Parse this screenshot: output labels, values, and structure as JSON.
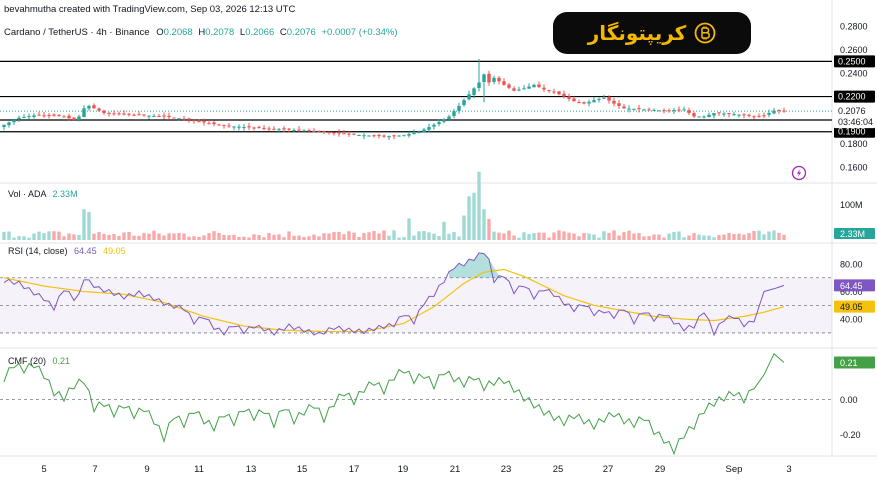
{
  "header": {
    "credit": "bevahmutha created with TradingView.com, Sep 03, 2026 12:13 UTC",
    "symbol": "Cardano / TetherUS · 4h · Binance",
    "ohlc": {
      "o_label": "O",
      "o": "0.2068",
      "h_label": "H",
      "h": "0.2078",
      "l_label": "L",
      "l": "0.2066",
      "c_label": "C",
      "c": "0.2076",
      "change": "+0.0007 (+0.34%)"
    }
  },
  "brand": {
    "name": "کریپتونگار",
    "icon": "bitcoin-logo-icon",
    "bg": "#0b0b0b",
    "fg": "#f5b800"
  },
  "colors": {
    "up": "#26a69a",
    "down": "#ef5350",
    "rsi": "#7e57c2",
    "rsi_ma": "#f4c20d",
    "cmf": "#43a047",
    "level": "#000000"
  },
  "chart_data": [
    {
      "type": "candlestick",
      "name": "Cardano / TetherUS · 4h · Binance",
      "ylim": [
        0.148,
        0.287
      ],
      "price_ticks": [
        "0.2800",
        "0.2600",
        "0.2400",
        "0.2200",
        "0.2000",
        "0.1800",
        "0.1600"
      ],
      "levels": [
        {
          "value": 0.25,
          "label": "0.2500"
        },
        {
          "value": 0.22,
          "label": "0.2200"
        },
        {
          "value": 0.19,
          "label": "0.1900"
        },
        {
          "value": 0.2,
          "label": "0.2000"
        }
      ],
      "last_price": {
        "value": 0.2076,
        "label": "0.2076",
        "countdown": "03:46:04"
      },
      "close_series_anchors": [
        [
          0,
          0.196
        ],
        [
          3,
          0.202
        ],
        [
          6,
          0.204
        ],
        [
          9,
          0.204
        ],
        [
          12,
          0.203
        ],
        [
          14,
          0.2
        ],
        [
          15,
          0.203
        ],
        [
          16,
          0.21
        ],
        [
          17,
          0.212
        ],
        [
          20,
          0.206
        ],
        [
          24,
          0.205
        ],
        [
          28,
          0.204
        ],
        [
          32,
          0.203
        ],
        [
          36,
          0.201
        ],
        [
          40,
          0.198
        ],
        [
          44,
          0.195
        ],
        [
          48,
          0.194
        ],
        [
          52,
          0.193
        ],
        [
          56,
          0.192
        ],
        [
          60,
          0.191
        ],
        [
          64,
          0.19
        ],
        [
          68,
          0.188
        ],
        [
          72,
          0.187
        ],
        [
          76,
          0.186
        ],
        [
          80,
          0.187
        ],
        [
          83,
          0.19
        ],
        [
          86,
          0.196
        ],
        [
          89,
          0.203
        ],
        [
          91,
          0.212
        ],
        [
          93,
          0.222
        ],
        [
          95,
          0.232
        ],
        [
          96,
          0.239
        ],
        [
          97,
          0.232
        ],
        [
          98,
          0.236
        ],
        [
          100,
          0.23
        ],
        [
          102,
          0.225
        ],
        [
          104,
          0.227
        ],
        [
          106,
          0.23
        ],
        [
          108,
          0.226
        ],
        [
          110,
          0.224
        ],
        [
          112,
          0.22
        ],
        [
          114,
          0.216
        ],
        [
          116,
          0.214
        ],
        [
          118,
          0.217
        ],
        [
          120,
          0.219
        ],
        [
          122,
          0.214
        ],
        [
          124,
          0.21
        ],
        [
          128,
          0.209
        ],
        [
          132,
          0.208
        ],
        [
          136,
          0.209
        ],
        [
          138,
          0.203
        ],
        [
          140,
          0.203
        ],
        [
          142,
          0.206
        ],
        [
          146,
          0.205
        ],
        [
          150,
          0.203
        ],
        [
          152,
          0.204
        ],
        [
          154,
          0.208
        ],
        [
          156,
          0.2076
        ]
      ],
      "extra_highs": [
        [
          95,
          0.252
        ],
        [
          97,
          0.242
        ]
      ],
      "extra_lows": [
        [
          96,
          0.215
        ]
      ]
    },
    {
      "type": "bar",
      "name": "Vol · ADA",
      "value_label": "2.33M",
      "ticks": [
        "100M"
      ],
      "ymax": 160,
      "highlights": [
        [
          93,
          125
        ],
        [
          94,
          135
        ],
        [
          95,
          195
        ],
        [
          96,
          88
        ],
        [
          92,
          70
        ],
        [
          81,
          62
        ],
        [
          16,
          88
        ],
        [
          17,
          80
        ],
        [
          97,
          60
        ],
        [
          88,
          52
        ]
      ]
    },
    {
      "type": "line",
      "name": "RSI (14, close)",
      "values_label": [
        "64.45",
        "49.05"
      ],
      "ylim": [
        22,
        93
      ],
      "ticks": [
        "80.00",
        "60.00",
        "40.00"
      ],
      "band": [
        30,
        70
      ],
      "current": {
        "rsi": "64.45",
        "ma": "49.05"
      },
      "rsi_anchors": [
        [
          0,
          68
        ],
        [
          3,
          66
        ],
        [
          6,
          59
        ],
        [
          8,
          55
        ],
        [
          10,
          48
        ],
        [
          12,
          62
        ],
        [
          14,
          55
        ],
        [
          15,
          57
        ],
        [
          16,
          70
        ],
        [
          17,
          67
        ],
        [
          19,
          62
        ],
        [
          21,
          60
        ],
        [
          24,
          56
        ],
        [
          27,
          59
        ],
        [
          30,
          55
        ],
        [
          33,
          50
        ],
        [
          36,
          48
        ],
        [
          38,
          38
        ],
        [
          40,
          42
        ],
        [
          42,
          34
        ],
        [
          44,
          30
        ],
        [
          46,
          36
        ],
        [
          48,
          31
        ],
        [
          50,
          35
        ],
        [
          52,
          33
        ],
        [
          54,
          30
        ],
        [
          57,
          35
        ],
        [
          60,
          32
        ],
        [
          63,
          29
        ],
        [
          66,
          34
        ],
        [
          69,
          32
        ],
        [
          72,
          31
        ],
        [
          75,
          34
        ],
        [
          78,
          36
        ],
        [
          80,
          44
        ],
        [
          82,
          38
        ],
        [
          84,
          52
        ],
        [
          86,
          58
        ],
        [
          88,
          68
        ],
        [
          90,
          78
        ],
        [
          92,
          80
        ],
        [
          94,
          84
        ],
        [
          96,
          89
        ],
        [
          97,
          82
        ],
        [
          98,
          68
        ],
        [
          100,
          72
        ],
        [
          102,
          60
        ],
        [
          104,
          65
        ],
        [
          106,
          56
        ],
        [
          108,
          62
        ],
        [
          110,
          58
        ],
        [
          112,
          52
        ],
        [
          114,
          47
        ],
        [
          116,
          51
        ],
        [
          118,
          44
        ],
        [
          120,
          46
        ],
        [
          122,
          42
        ],
        [
          124,
          48
        ],
        [
          126,
          38
        ],
        [
          128,
          46
        ],
        [
          130,
          40
        ],
        [
          132,
          44
        ],
        [
          134,
          38
        ],
        [
          136,
          33
        ],
        [
          138,
          35
        ],
        [
          140,
          46
        ],
        [
          142,
          30
        ],
        [
          144,
          40
        ],
        [
          146,
          42
        ],
        [
          148,
          36
        ],
        [
          150,
          38
        ],
        [
          152,
          60
        ],
        [
          154,
          62
        ],
        [
          156,
          64.45
        ]
      ],
      "ma_anchors": [
        [
          0,
          70
        ],
        [
          8,
          64
        ],
        [
          16,
          60
        ],
        [
          24,
          58
        ],
        [
          32,
          52
        ],
        [
          40,
          42
        ],
        [
          48,
          35
        ],
        [
          56,
          32
        ],
        [
          64,
          31
        ],
        [
          72,
          31
        ],
        [
          80,
          37
        ],
        [
          86,
          49
        ],
        [
          92,
          66
        ],
        [
          96,
          74
        ],
        [
          100,
          76
        ],
        [
          104,
          71
        ],
        [
          108,
          64
        ],
        [
          112,
          57
        ],
        [
          118,
          50
        ],
        [
          124,
          46
        ],
        [
          130,
          42
        ],
        [
          136,
          40
        ],
        [
          142,
          39
        ],
        [
          148,
          42
        ],
        [
          152,
          45
        ],
        [
          156,
          49.05
        ]
      ]
    },
    {
      "type": "line",
      "name": "CMF (20)",
      "value_label": "0.21",
      "ylim": [
        -0.3,
        0.27
      ],
      "ticks": [
        "0.00",
        "-0.20"
      ],
      "current": "0.21",
      "anchors": [
        [
          0,
          0.12
        ],
        [
          2,
          0.2
        ],
        [
          4,
          0.17
        ],
        [
          6,
          0.2
        ],
        [
          8,
          0.14
        ],
        [
          10,
          0.04
        ],
        [
          12,
          0.01
        ],
        [
          14,
          0.08
        ],
        [
          16,
          0.11
        ],
        [
          18,
          -0.05
        ],
        [
          20,
          -0.02
        ],
        [
          22,
          -0.08
        ],
        [
          24,
          -0.03
        ],
        [
          26,
          -0.09
        ],
        [
          28,
          -0.05
        ],
        [
          30,
          -0.12
        ],
        [
          32,
          -0.22
        ],
        [
          34,
          -0.09
        ],
        [
          36,
          -0.14
        ],
        [
          38,
          -0.06
        ],
        [
          40,
          -0.12
        ],
        [
          42,
          -0.16
        ],
        [
          44,
          -0.08
        ],
        [
          46,
          -0.13
        ],
        [
          48,
          -0.05
        ],
        [
          50,
          -0.1
        ],
        [
          52,
          -0.06
        ],
        [
          54,
          -0.14
        ],
        [
          56,
          -0.04
        ],
        [
          58,
          -0.12
        ],
        [
          60,
          -0.07
        ],
        [
          62,
          -0.03
        ],
        [
          64,
          -0.11
        ],
        [
          66,
          -0.02
        ],
        [
          68,
          0.04
        ],
        [
          70,
          -0.01
        ],
        [
          72,
          0.06
        ],
        [
          74,
          0.1
        ],
        [
          76,
          0.05
        ],
        [
          78,
          0.13
        ],
        [
          80,
          0.17
        ],
        [
          82,
          0.11
        ],
        [
          84,
          0.14
        ],
        [
          86,
          0.08
        ],
        [
          88,
          0.16
        ],
        [
          90,
          0.12
        ],
        [
          92,
          0.09
        ],
        [
          94,
          0.13
        ],
        [
          96,
          0.07
        ],
        [
          98,
          0.1
        ],
        [
          100,
          0.11
        ],
        [
          102,
          0.06
        ],
        [
          104,
          0.01
        ],
        [
          106,
          -0.03
        ],
        [
          108,
          -0.07
        ],
        [
          110,
          -0.1
        ],
        [
          112,
          -0.13
        ],
        [
          114,
          -0.09
        ],
        [
          116,
          -0.12
        ],
        [
          118,
          -0.15
        ],
        [
          120,
          -0.11
        ],
        [
          122,
          -0.08
        ],
        [
          124,
          -0.12
        ],
        [
          126,
          -0.14
        ],
        [
          128,
          -0.1
        ],
        [
          130,
          -0.18
        ],
        [
          132,
          -0.23
        ],
        [
          134,
          -0.29
        ],
        [
          136,
          -0.2
        ],
        [
          138,
          -0.15
        ],
        [
          140,
          -0.06
        ],
        [
          142,
          -0.02
        ],
        [
          144,
          0.01
        ],
        [
          146,
          0.04
        ],
        [
          148,
          0.0
        ],
        [
          150,
          0.06
        ],
        [
          152,
          0.14
        ],
        [
          154,
          0.26
        ],
        [
          156,
          0.21
        ]
      ]
    }
  ],
  "x_axis": {
    "labels": [
      "5",
      "7",
      "9",
      "11",
      "13",
      "15",
      "17",
      "19",
      "21",
      "23",
      "25",
      "27",
      "29",
      "Sep",
      "3"
    ]
  },
  "icons": {
    "alert": "lightning-icon"
  }
}
